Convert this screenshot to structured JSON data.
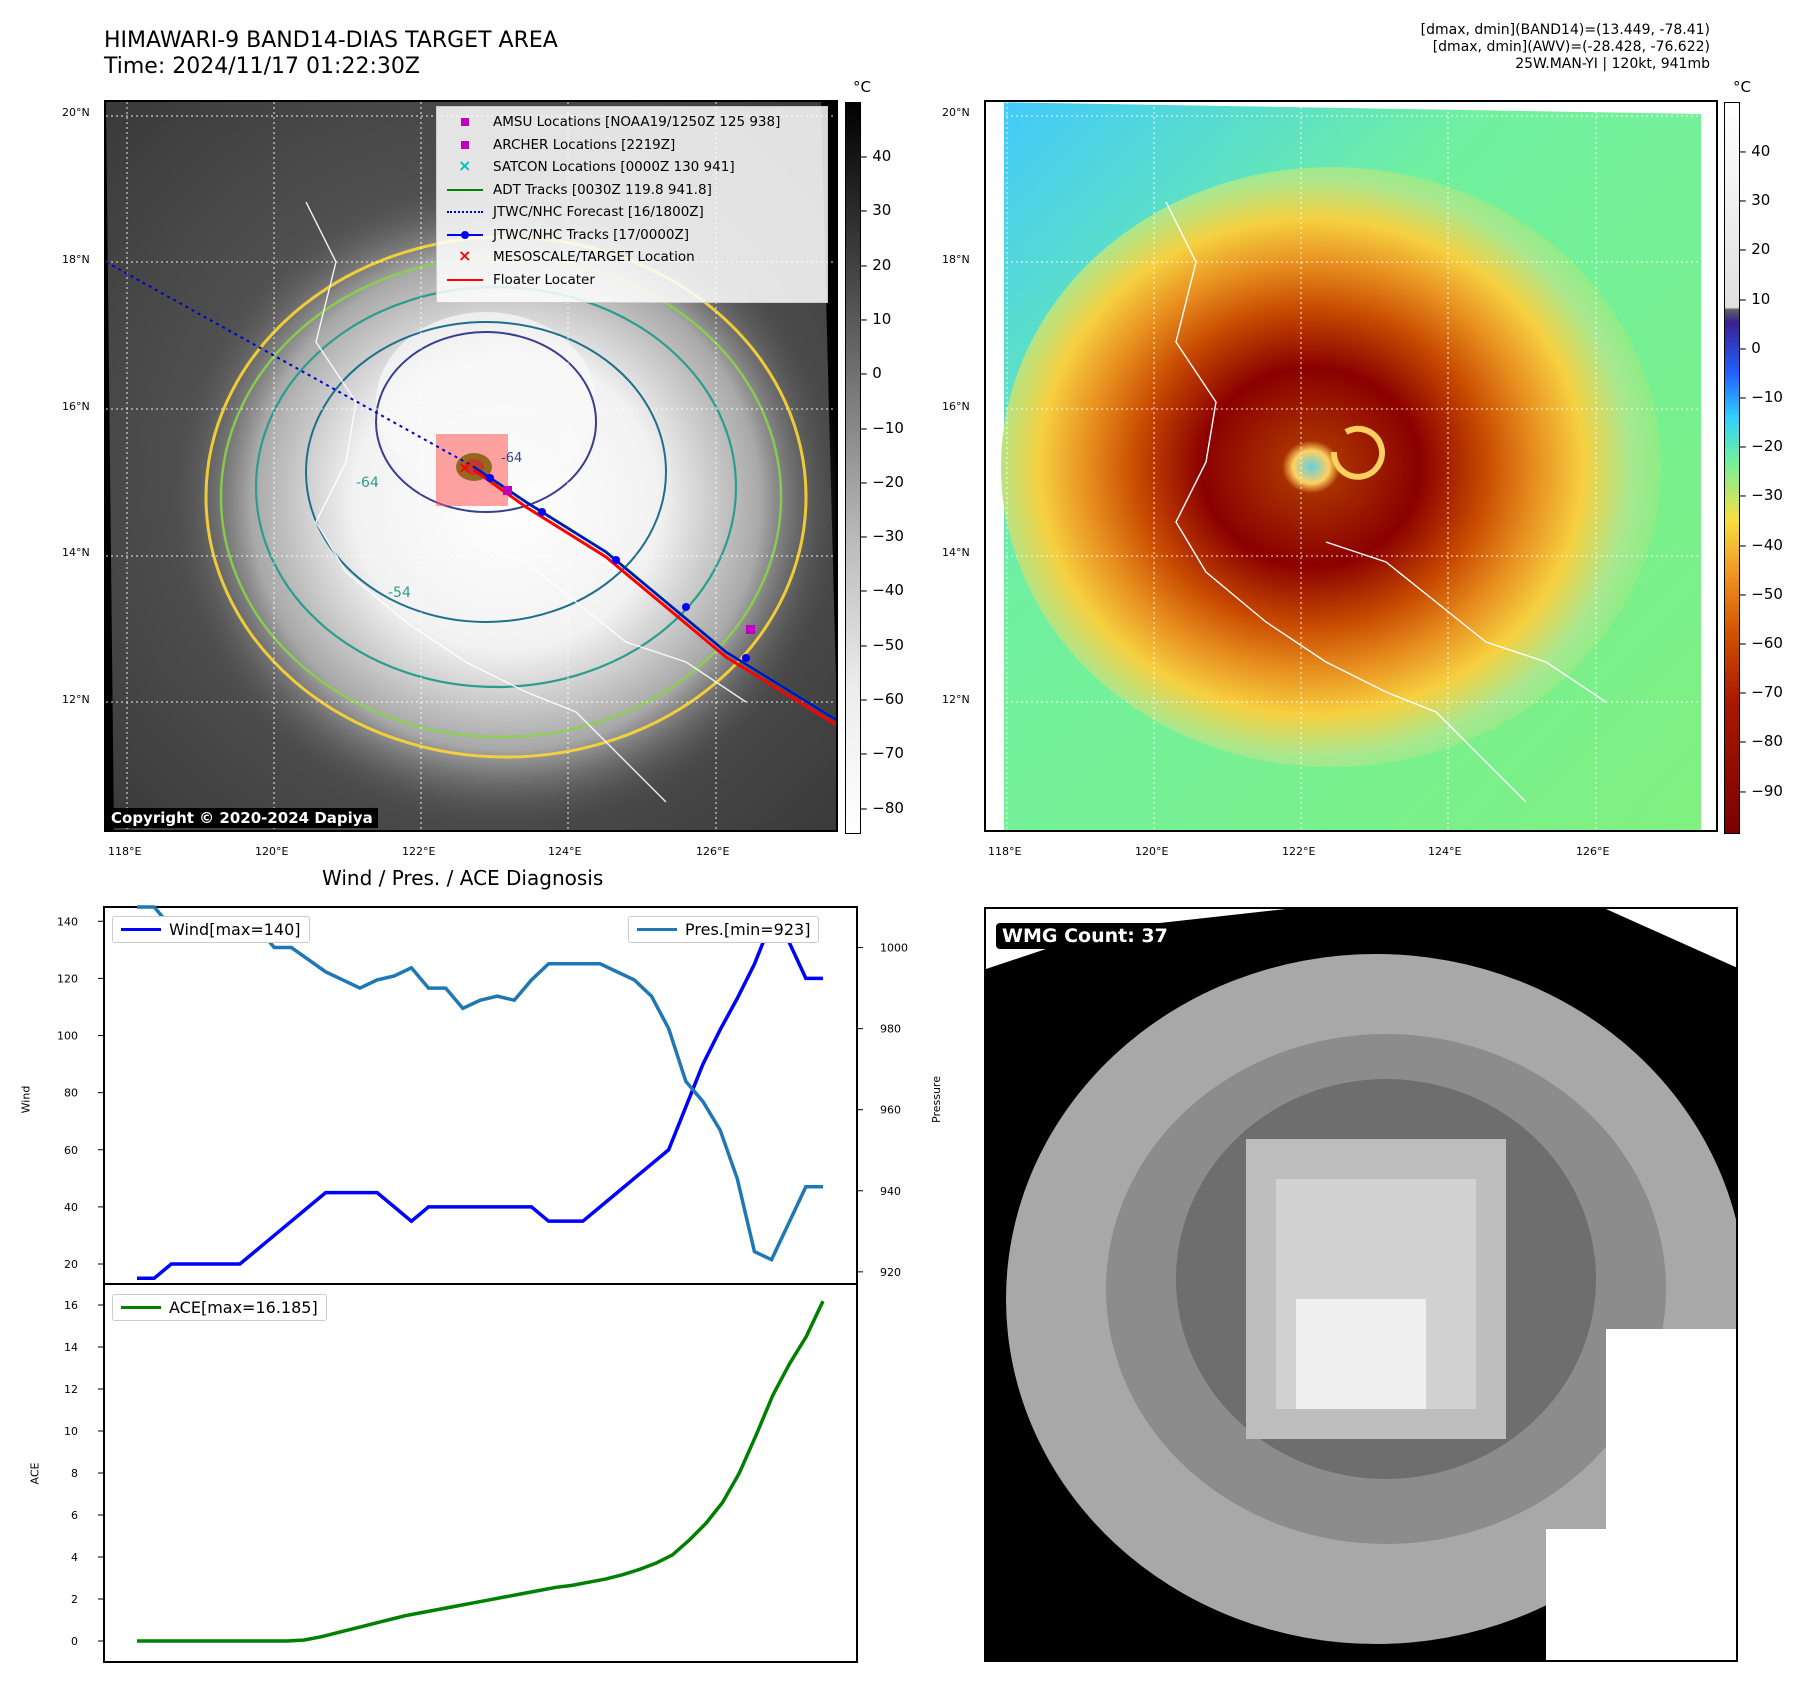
{
  "header": {
    "title_line1": "HIMAWARI-9 BAND14-DIAS TARGET AREA",
    "title_line2": "Time: 2024/11/17 01:22:30Z",
    "info_line1": "[dmax, dmin](BAND14)=(13.449, -78.41)",
    "info_line2": "[dmax, dmin](AWV)=(-28.428, -76.622)",
    "info_line3": "25W.MAN-YI | 120kt, 941mb"
  },
  "map_axes": {
    "lat_labels": [
      "20°N",
      "18°N",
      "16°N",
      "14°N",
      "12°N"
    ],
    "lon_labels": [
      "118°E",
      "120°E",
      "122°E",
      "124°E",
      "126°E"
    ]
  },
  "colorbar_left": {
    "unit": "°C",
    "ticks": [
      "40",
      "30",
      "20",
      "10",
      "0",
      "−10",
      "−20",
      "−30",
      "−40",
      "−50",
      "−60",
      "−70",
      "−80"
    ]
  },
  "colorbar_right": {
    "unit": "°C",
    "ticks": [
      "40",
      "30",
      "20",
      "10",
      "0",
      "−10",
      "−20",
      "−30",
      "−40",
      "−50",
      "−60",
      "−70",
      "−80",
      "−90"
    ]
  },
  "map_legend": [
    {
      "label": "AMSU Locations [NOAA19/1250Z 125 938]",
      "symbol": "square",
      "color": "#c000c0"
    },
    {
      "label": "ARCHER Locations [2219Z]",
      "symbol": "square",
      "color": "#c000c0"
    },
    {
      "label": "SATCON Locations [0000Z 130 941]",
      "symbol": "x",
      "color": "#00c0c0"
    },
    {
      "label": "ADT Tracks [0030Z 119.8 941.8]",
      "symbol": "line",
      "color": "#008000"
    },
    {
      "label": "JTWC/NHC Forecast [16/1800Z]",
      "symbol": "dotted",
      "color": "#0000cc"
    },
    {
      "label": "JTWC/NHC Tracks [17/0000Z]",
      "symbol": "line-dot",
      "color": "#0000ff"
    },
    {
      "label": "MESOSCALE/TARGET Location",
      "symbol": "x",
      "color": "#ff0000"
    },
    {
      "label": "Floater Locater",
      "symbol": "line",
      "color": "#ff0000"
    }
  ],
  "map_contour_labels": [
    "-64",
    "-54",
    "-64"
  ],
  "copyright": "Copyright © 2020-2024 Dapiya",
  "wmg_label": "WMG Count: 37",
  "diagnosis_title": "Wind / Pres. / ACE Diagnosis",
  "colors": {
    "wind": "#0000ff",
    "pressure": "#1f77b4",
    "ace": "#008000"
  },
  "chart_data": [
    {
      "type": "line",
      "xlabel": "",
      "ylabel": "Wind",
      "y2label": "Pressure",
      "ylim": [
        13,
        145
      ],
      "y2lim": [
        917,
        1010
      ],
      "yticks": [
        20,
        40,
        60,
        80,
        100,
        120,
        140
      ],
      "y2ticks": [
        920,
        940,
        960,
        980,
        1000
      ],
      "series": [
        {
          "name": "Wind[max=140]",
          "axis": "left",
          "values": [
            15,
            15,
            20,
            20,
            20,
            20,
            20,
            25,
            30,
            35,
            40,
            45,
            45,
            45,
            45,
            40,
            35,
            40,
            40,
            40,
            40,
            40,
            40,
            40,
            35,
            35,
            35,
            40,
            45,
            50,
            55,
            60,
            75,
            90,
            102,
            113,
            125,
            140,
            133,
            120,
            120
          ]
        },
        {
          "name": "Pres.[min=923]",
          "axis": "right",
          "values": [
            1010,
            1010,
            1005,
            1005,
            1005,
            1005,
            1005,
            1005,
            1000,
            1000,
            997,
            994,
            992,
            990,
            992,
            993,
            995,
            990,
            990,
            985,
            987,
            988,
            987,
            992,
            996,
            996,
            996,
            996,
            994,
            992,
            988,
            980,
            967,
            962,
            955,
            943,
            925,
            923,
            932,
            941,
            941
          ]
        }
      ]
    },
    {
      "type": "line",
      "xlabel": "",
      "ylabel": "ACE",
      "ylim": [
        -1,
        17
      ],
      "yticks": [
        0,
        2,
        4,
        6,
        8,
        10,
        12,
        14,
        16
      ],
      "series": [
        {
          "name": "ACE[max=16.185]",
          "values": [
            0,
            0,
            0,
            0,
            0,
            0,
            0,
            0,
            0,
            0,
            0.05,
            0.2,
            0.4,
            0.6,
            0.8,
            1.0,
            1.2,
            1.35,
            1.5,
            1.65,
            1.8,
            1.95,
            2.1,
            2.25,
            2.4,
            2.55,
            2.65,
            2.8,
            2.95,
            3.15,
            3.4,
            3.7,
            4.1,
            4.8,
            5.6,
            6.6,
            8.0,
            9.8,
            11.7,
            13.2,
            14.5,
            16.185
          ]
        }
      ]
    }
  ]
}
